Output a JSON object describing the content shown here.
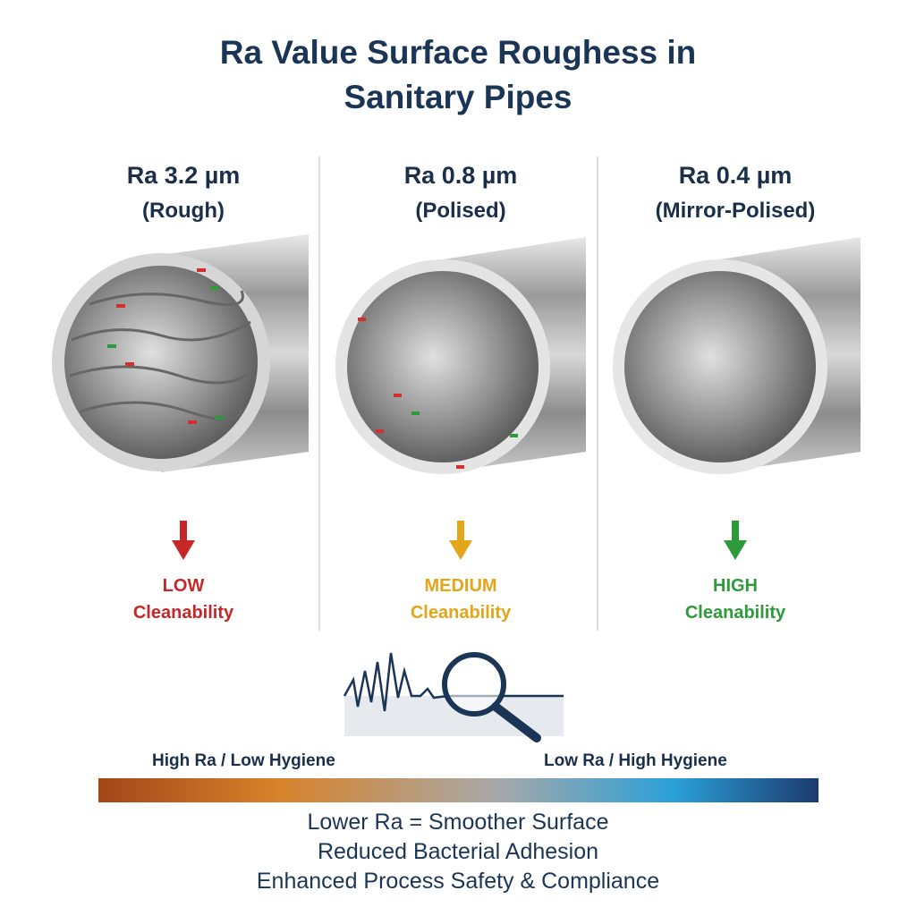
{
  "title": "Ra Value Surface Roughess in Sanitary Pipes",
  "panels": [
    {
      "heading": "Ra 3.2 µm",
      "subheading": "(Rough)",
      "level": "LOW",
      "caption": "Cleanability",
      "color": "#c62828"
    },
    {
      "heading": "Ra 0.8 µm",
      "subheading": "(Polised)",
      "level": "MEDIUM",
      "caption": "Cleanability",
      "color": "#e3a51a"
    },
    {
      "heading": "Ra 0.4 µm",
      "subheading": "(Mirror-Polised)",
      "level": "HIGH",
      "caption": "Cleanability",
      "color": "#2e9a3a"
    }
  ],
  "scale": {
    "left_label": "High Ra / Low Hygiene",
    "right_label": "Low Ra / High Hygiene"
  },
  "footer": [
    "Lower Ra = Smoother Surface",
    "Reduced Bacterial Adhesion",
    "Enhanced Process Safety & Compliance"
  ]
}
